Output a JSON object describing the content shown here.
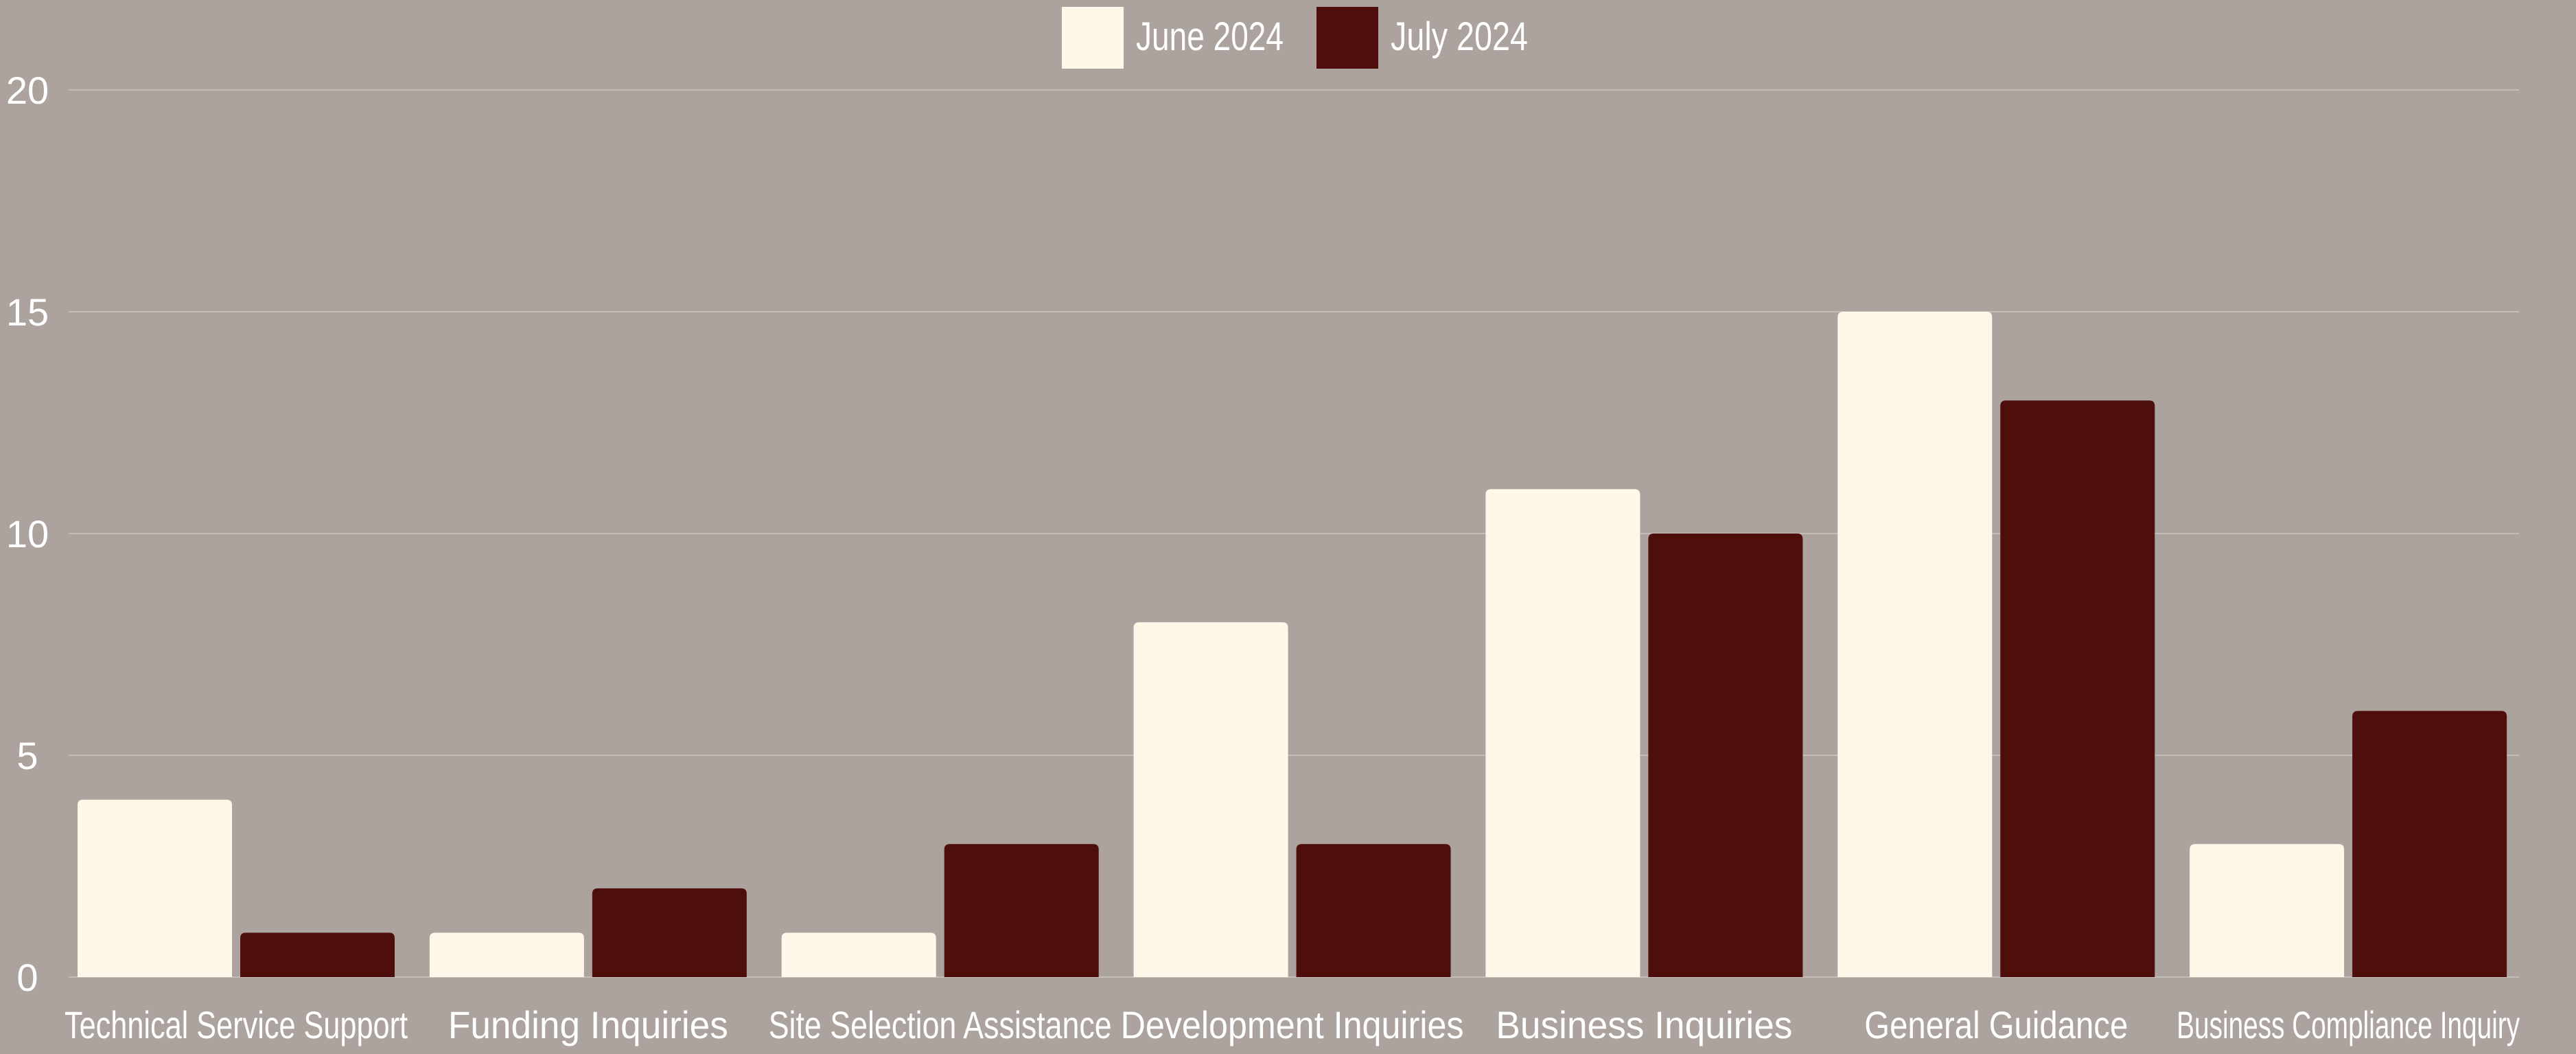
{
  "chart_data": {
    "type": "bar",
    "categories": [
      "Technical Service Support",
      "Funding Inquiries",
      "Site Selection Assistance",
      "Development Inquiries",
      "Business Inquiries",
      "General Guidance",
      "Business Compliance Inquiry"
    ],
    "series": [
      {
        "name": "June 2024",
        "color": "#fff8e8",
        "values": [
          4,
          1,
          1,
          8,
          11,
          15,
          3
        ]
      },
      {
        "name": "July 2024",
        "color": "#4e0e0c",
        "values": [
          1,
          2,
          3,
          3,
          10,
          13,
          6
        ]
      }
    ],
    "title": "",
    "xlabel": "",
    "ylabel": "",
    "ylim": [
      0,
      20
    ],
    "yticks": [
      0,
      5,
      10,
      15,
      20
    ],
    "grid": true,
    "legend_position": "top-center",
    "colors": {
      "background": "#aca29e",
      "gridline": "#c4bcb8",
      "text": "#ffffff"
    }
  }
}
